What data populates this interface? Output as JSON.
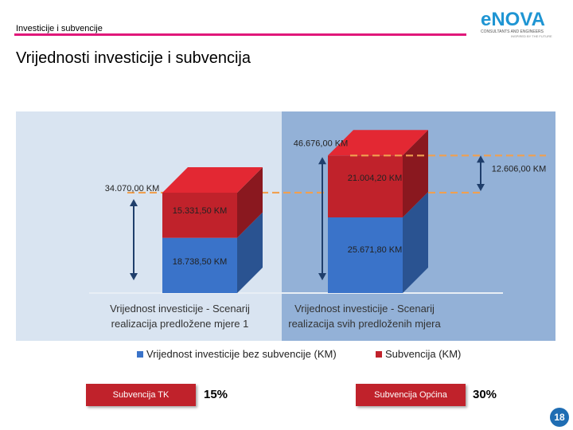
{
  "header": {
    "section": "Investicije i subvencije",
    "logo_text": "eNOVA",
    "logo_sub1": "CONSULTANTS AND ENGINEERS",
    "logo_sub2": "INSPIRED BY THE FUTURE"
  },
  "slide_title": "Vrijednosti investicije i subvencija",
  "chart_data": {
    "type": "bar",
    "stacked": true,
    "categories": [
      "Vrijednost investicije - Scenarij realizacija predložene mjere 1",
      "Vrijednost investicije - Scenarij realizacija svih predloženih mjera"
    ],
    "category_lines": [
      [
        "Vrijednost investicije - Scenarij",
        "realizacija predložene mjere 1"
      ],
      [
        "Vrijednost investicije - Scenarij",
        "realizacija svih predloženih mjera"
      ]
    ],
    "series": [
      {
        "name": "Vrijednost investicije bez subvencije (KM)",
        "values": [
          18738.5,
          25671.8
        ],
        "labels": [
          "18.738,50 KM",
          "25.671,80 KM"
        ],
        "color": "#3a73c9"
      },
      {
        "name": "Subvencija (KM)",
        "values": [
          15331.5,
          21004.2
        ],
        "labels": [
          "15.331,50 KM",
          "21.004,20 KM"
        ],
        "color": "#c0222b"
      }
    ],
    "totals": [
      34070.0,
      46676.0
    ],
    "total_labels": [
      "34.070,00 KM",
      "46.676,00 KM"
    ],
    "difference_label": "12.606,00 KM",
    "legend_position": "bottom"
  },
  "colors": {
    "accent": "#e0177a",
    "panel_left": "#d9e4f1",
    "panel_right": "#93b1d7",
    "dashed": "#f0a050",
    "brand": "#1f6db3"
  },
  "badges": [
    {
      "label": "Subvencija TK",
      "percent": "15%"
    },
    {
      "label": "Subvencija Općina",
      "percent": "30%"
    }
  ],
  "page_number": "18"
}
